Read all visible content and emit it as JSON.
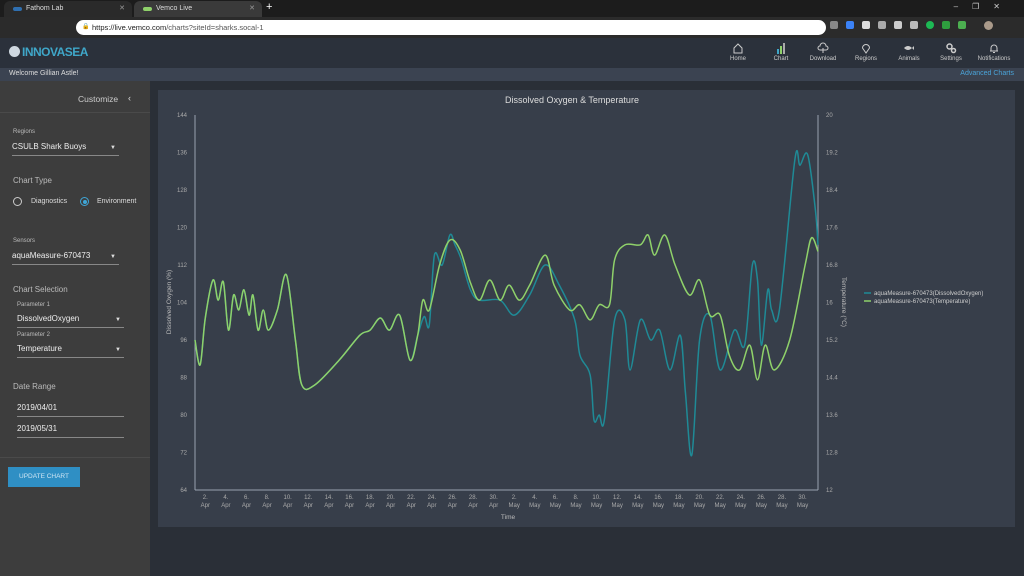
{
  "browser": {
    "tabs": [
      {
        "title": "Fathom Lab",
        "active": false
      },
      {
        "title": "Vemco Live",
        "active": true
      }
    ],
    "url_host": "https://live.vemco.com",
    "url_path": "/charts?siteId=sharks.socal-1"
  },
  "header": {
    "logo": "INNOVASEA",
    "nav": [
      {
        "label": "Home",
        "icon": "home-icon"
      },
      {
        "label": "Chart",
        "icon": "bar-chart-icon"
      },
      {
        "label": "Download",
        "icon": "cloud-download-icon"
      },
      {
        "label": "Regions",
        "icon": "map-pin-icon"
      },
      {
        "label": "Animals",
        "icon": "fish-icon"
      },
      {
        "label": "Settings",
        "icon": "gears-icon"
      },
      {
        "label": "Notifications",
        "icon": "bell-icon"
      }
    ],
    "welcome": "Welcome Gillian Astle!",
    "advanced": "Advanced Charts"
  },
  "sidebar": {
    "customize": "Customize",
    "regions_label": "Regions",
    "regions_value": "CSULB Shark Buoys",
    "chart_type_label": "Chart Type",
    "chart_types": [
      {
        "label": "Diagnostics",
        "selected": false
      },
      {
        "label": "Environment",
        "selected": true
      }
    ],
    "sensors_label": "Sensors",
    "sensors_value": "aquaMeasure-670473",
    "chart_selection_label": "Chart Selection",
    "param1_label": "Parameter 1",
    "param1_value": "DissolvedOxygen",
    "param2_label": "Parameter 2",
    "param2_value": "Temperature",
    "date_range_label": "Date Range",
    "date_start": "2019/04/01",
    "date_end": "2019/05/31",
    "update_button": "UPDATE CHART",
    "accent": "#2f8fc4"
  },
  "chart_data": {
    "type": "line",
    "title": "Dissolved Oxygen & Temperature",
    "xlabel": "Time",
    "ylabel": "Dissolved Oxygen (%)",
    "y2label": "Temperature (°C)",
    "xlim": [
      "2019-04-01T00:00",
      "2019-05-31T12:00"
    ],
    "ylim": [
      64,
      144
    ],
    "y2lim": [
      12,
      20
    ],
    "yticks": [
      "144",
      "136",
      "128",
      "120",
      "112",
      "104",
      "96",
      "88",
      "80",
      "72",
      "64"
    ],
    "y2ticks": [
      "20",
      "19.2",
      "18.4",
      "17.6",
      "16.8",
      "16",
      "15.2",
      "14.4",
      "13.6",
      "12.8",
      "12"
    ],
    "xticks": [
      [
        "2.",
        "Apr"
      ],
      [
        "4.",
        "Apr"
      ],
      [
        "6.",
        "Apr"
      ],
      [
        "8.",
        "Apr"
      ],
      [
        "10.",
        "Apr"
      ],
      [
        "12.",
        "Apr"
      ],
      [
        "14.",
        "Apr"
      ],
      [
        "16.",
        "Apr"
      ],
      [
        "18.",
        "Apr"
      ],
      [
        "20.",
        "Apr"
      ],
      [
        "22.",
        "Apr"
      ],
      [
        "24.",
        "Apr"
      ],
      [
        "26.",
        "Apr"
      ],
      [
        "28.",
        "Apr"
      ],
      [
        "30.",
        "Apr"
      ],
      [
        "2.",
        "May"
      ],
      [
        "4.",
        "May"
      ],
      [
        "6.",
        "May"
      ],
      [
        "8.",
        "May"
      ],
      [
        "10.",
        "May"
      ],
      [
        "12.",
        "May"
      ],
      [
        "14.",
        "May"
      ],
      [
        "16.",
        "May"
      ],
      [
        "18.",
        "May"
      ],
      [
        "20.",
        "May"
      ],
      [
        "22.",
        "May"
      ],
      [
        "24.",
        "May"
      ],
      [
        "26.",
        "May"
      ],
      [
        "28.",
        "May"
      ],
      [
        "30.",
        "May"
      ]
    ],
    "grid": false,
    "legend": "right",
    "series": [
      {
        "name": "aquaMeasure-670473(DissolvedOxygen)",
        "axis": "left",
        "color": "#1f8a96",
        "points": [
          [
            "2019-04-01T00:00",
            96
          ],
          [
            "2019-04-01T12:00",
            90.7
          ],
          [
            "2019-04-02T00:00",
            100.7
          ],
          [
            "2019-04-02T18:00",
            108.8
          ],
          [
            "2019-04-03T06:00",
            104.5
          ],
          [
            "2019-04-03T18:00",
            108.4
          ],
          [
            "2019-04-04T06:00",
            98.1
          ],
          [
            "2019-04-04T18:00",
            105.6
          ],
          [
            "2019-04-05T06:00",
            102.4
          ],
          [
            "2019-04-05T18:00",
            106.7
          ],
          [
            "2019-04-06T06:00",
            101.3
          ],
          [
            "2019-04-06T15:00",
            105.6
          ],
          [
            "2019-04-07T03:00",
            98.1
          ],
          [
            "2019-04-07T15:00",
            102.4
          ],
          [
            "2019-04-08T03:00",
            98.1
          ],
          [
            "2019-04-09T00:00",
            102.4
          ],
          [
            "2019-04-09T21:00",
            109.9
          ],
          [
            "2019-04-10T18:00",
            96
          ],
          [
            "2019-04-11T09:00",
            86.4
          ],
          [
            "2019-04-12T15:00",
            86.4
          ],
          [
            "2019-04-15T00:00",
            91.7
          ],
          [
            "2019-04-17T00:00",
            97
          ],
          [
            "2019-04-18T00:00",
            98.1
          ],
          [
            "2019-04-19T00:00",
            100.7
          ],
          [
            "2019-04-19T21:00",
            98.1
          ],
          [
            "2019-04-20T21:00",
            101.3
          ],
          [
            "2019-04-21T21:00",
            91.7
          ],
          [
            "2019-04-22T15:00",
            97
          ],
          [
            "2019-04-23T06:00",
            101
          ],
          [
            "2019-04-23T18:00",
            99.2
          ],
          [
            "2019-04-24T06:00",
            114.1
          ],
          [
            "2019-04-25T00:00",
            112
          ],
          [
            "2019-04-25T18:00",
            118.4
          ],
          [
            "2019-04-26T06:00",
            116.3
          ],
          [
            "2019-04-26T21:00",
            113.1
          ],
          [
            "2019-04-27T18:00",
            106.7
          ],
          [
            "2019-04-28T15:00",
            104.5
          ],
          [
            "2019-04-30T15:00",
            104.5
          ],
          [
            "2019-05-02T00:00",
            101.3
          ],
          [
            "2019-05-03T12:00",
            105.6
          ],
          [
            "2019-05-05T00:00",
            112
          ],
          [
            "2019-05-06T09:00",
            107.7
          ],
          [
            "2019-05-07T21:00",
            100.3
          ],
          [
            "2019-05-08T09:00",
            92.8
          ],
          [
            "2019-05-09T09:00",
            88.5
          ],
          [
            "2019-05-09T18:00",
            78.9
          ],
          [
            "2019-05-10T06:00",
            80
          ],
          [
            "2019-05-10T18:00",
            78.9
          ],
          [
            "2019-05-11T18:00",
            100.3
          ],
          [
            "2019-05-12T18:00",
            100.3
          ],
          [
            "2019-05-13T06:00",
            89.6
          ],
          [
            "2019-05-14T06:00",
            100.3
          ],
          [
            "2019-05-15T06:00",
            96
          ],
          [
            "2019-05-16T03:00",
            98.1
          ],
          [
            "2019-05-17T03:00",
            89.6
          ],
          [
            "2019-05-18T03:00",
            97
          ],
          [
            "2019-05-18T15:00",
            84.8
          ],
          [
            "2019-05-19T06:00",
            71.5
          ],
          [
            "2019-05-20T00:00",
            96
          ],
          [
            "2019-05-21T00:00",
            101.3
          ],
          [
            "2019-05-22T00:00",
            89.6
          ],
          [
            "2019-05-23T09:00",
            98.1
          ],
          [
            "2019-05-24T09:00",
            94.9
          ],
          [
            "2019-05-25T03:00",
            112
          ],
          [
            "2019-05-25T15:00",
            108.8
          ],
          [
            "2019-05-26T00:00",
            94.9
          ],
          [
            "2019-05-26T15:00",
            106.7
          ],
          [
            "2019-05-27T00:00",
            102.4
          ],
          [
            "2019-05-27T18:00",
            102.4
          ],
          [
            "2019-05-29T06:00",
            134.4
          ],
          [
            "2019-05-29T18:00",
            133.3
          ],
          [
            "2019-05-30T12:00",
            135.5
          ],
          [
            "2019-05-31T06:00",
            123.7
          ],
          [
            "2019-05-31T12:00",
            116.3
          ]
        ]
      },
      {
        "name": "aquaMeasure-670473(Temperature)",
        "axis": "right",
        "color": "#8fd16a",
        "points": [
          [
            "2019-04-01T00:00",
            15.2
          ],
          [
            "2019-04-01T12:00",
            14.67
          ],
          [
            "2019-04-02T00:00",
            15.67
          ],
          [
            "2019-04-02T18:00",
            16.48
          ],
          [
            "2019-04-03T06:00",
            16.05
          ],
          [
            "2019-04-03T18:00",
            16.44
          ],
          [
            "2019-04-04T06:00",
            15.41
          ],
          [
            "2019-04-04T18:00",
            16.16
          ],
          [
            "2019-04-05T06:00",
            15.84
          ],
          [
            "2019-04-05T18:00",
            16.27
          ],
          [
            "2019-04-06T06:00",
            15.73
          ],
          [
            "2019-04-06T15:00",
            16.16
          ],
          [
            "2019-04-07T03:00",
            15.41
          ],
          [
            "2019-04-07T15:00",
            15.84
          ],
          [
            "2019-04-08T03:00",
            15.41
          ],
          [
            "2019-04-09T00:00",
            15.84
          ],
          [
            "2019-04-09T21:00",
            16.59
          ],
          [
            "2019-04-10T18:00",
            15.2
          ],
          [
            "2019-04-11T09:00",
            14.24
          ],
          [
            "2019-04-12T15:00",
            14.24
          ],
          [
            "2019-04-15T00:00",
            14.77
          ],
          [
            "2019-04-17T00:00",
            15.3
          ],
          [
            "2019-04-18T00:00",
            15.41
          ],
          [
            "2019-04-19T00:00",
            15.67
          ],
          [
            "2019-04-19T21:00",
            15.41
          ],
          [
            "2019-04-20T21:00",
            15.73
          ],
          [
            "2019-04-21T21:00",
            14.77
          ],
          [
            "2019-04-22T15:00",
            15.3
          ],
          [
            "2019-04-23T03:00",
            16.05
          ],
          [
            "2019-04-23T18:00",
            15.84
          ],
          [
            "2019-04-24T18:00",
            16.8
          ],
          [
            "2019-04-25T18:00",
            17.33
          ],
          [
            "2019-04-26T18:00",
            17.12
          ],
          [
            "2019-04-27T18:00",
            16.42
          ],
          [
            "2019-04-28T15:00",
            16.05
          ],
          [
            "2019-04-29T15:00",
            16.48
          ],
          [
            "2019-04-30T15:00",
            16.05
          ],
          [
            "2019-05-01T12:00",
            16.37
          ],
          [
            "2019-05-02T12:00",
            16.05
          ],
          [
            "2019-05-03T12:00",
            16.37
          ],
          [
            "2019-05-05T00:00",
            17.01
          ],
          [
            "2019-05-05T21:00",
            16.37
          ],
          [
            "2019-05-07T09:00",
            15.84
          ],
          [
            "2019-05-08T09:00",
            15.95
          ],
          [
            "2019-05-09T09:00",
            15.63
          ],
          [
            "2019-05-10T06:00",
            15.95
          ],
          [
            "2019-05-11T06:00",
            15.95
          ],
          [
            "2019-05-11T18:00",
            16.91
          ],
          [
            "2019-05-12T18:00",
            17.23
          ],
          [
            "2019-05-14T06:00",
            17.23
          ],
          [
            "2019-05-15T00:00",
            17.44
          ],
          [
            "2019-05-15T15:00",
            17.01
          ],
          [
            "2019-05-16T15:00",
            17.44
          ],
          [
            "2019-05-17T15:00",
            16.8
          ],
          [
            "2019-05-19T00:00",
            16.16
          ],
          [
            "2019-05-20T00:00",
            16.48
          ],
          [
            "2019-05-21T00:00",
            15.73
          ],
          [
            "2019-05-22T00:00",
            15.73
          ],
          [
            "2019-05-22T21:00",
            14.88
          ],
          [
            "2019-05-23T21:00",
            14.56
          ],
          [
            "2019-05-24T21:00",
            15.09
          ],
          [
            "2019-05-25T15:00",
            14.35
          ],
          [
            "2019-05-26T09:00",
            15.09
          ],
          [
            "2019-05-27T06:00",
            14.56
          ],
          [
            "2019-05-28T18:00",
            15.2
          ],
          [
            "2019-05-30T06:00",
            16.8
          ],
          [
            "2019-05-30T21:00",
            17.38
          ],
          [
            "2019-05-31T12:00",
            17.09
          ]
        ]
      }
    ]
  }
}
